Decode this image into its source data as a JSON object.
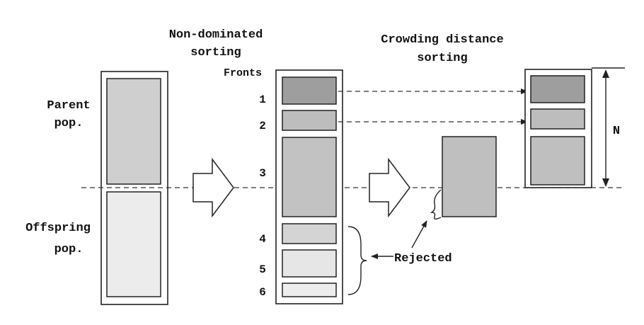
{
  "headings": {
    "nondominated_line1": "Non-dominated",
    "nondominated_line2": "sorting",
    "crowding_line1": "Crowding distance",
    "crowding_line2": "sorting"
  },
  "labels": {
    "fronts": "Fronts",
    "parent_line1": "Parent",
    "parent_line2": "pop.",
    "offspring_line1": "Offspring",
    "offspring_line2": "pop.",
    "rejected": "Rejected",
    "n": "N"
  },
  "fronts": [
    "1",
    "2",
    "3",
    "4",
    "5",
    "6"
  ],
  "colors": {
    "front1": "#9e9e9e",
    "front2": "#bdbdbd",
    "front3": "#c2c2c2",
    "front4": "#d4d4d4",
    "front5": "#e6e6e6",
    "front6": "#ededed",
    "parent": "#cfcfcf",
    "offspring": "#ececec",
    "partial": "#bfbfbf"
  }
}
